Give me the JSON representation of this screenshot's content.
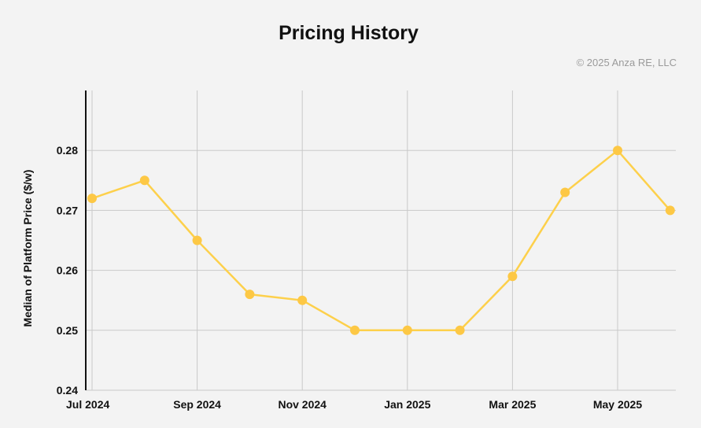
{
  "title": "Pricing History",
  "copyright": "© 2025 Anza RE, LLC",
  "chart_data": {
    "type": "line",
    "title": "Pricing History",
    "ylabel": "Median of Platform Price ($/w)",
    "xlabel": "",
    "x": [
      "2024-07",
      "2024-08",
      "2024-09",
      "2024-10",
      "2024-11",
      "2024-12",
      "2025-01",
      "2025-02",
      "2025-03",
      "2025-04",
      "2025-05",
      "2025-06"
    ],
    "series": [
      {
        "values": [
          0.272,
          0.275,
          0.265,
          0.256,
          0.255,
          0.25,
          0.25,
          0.25,
          0.259,
          0.273,
          0.28,
          0.27
        ]
      }
    ],
    "ylim": [
      0.24,
      0.29
    ],
    "yticks": [
      0.24,
      0.25,
      0.26,
      0.27,
      0.28
    ],
    "ytick_labels": [
      "0.24",
      "0.25",
      "0.26",
      "0.27",
      "0.28"
    ],
    "xticks": [
      0,
      2,
      4,
      6,
      8,
      10
    ],
    "xtick_labels": [
      "Jul 2024",
      "Sep 2024",
      "Nov 2024",
      "Jan 2025",
      "Mar 2025",
      "May 2025"
    ],
    "grid": true,
    "line_color": "#fdd04b",
    "marker_color": "#fdc845",
    "grid_color": "#c9c9c9"
  }
}
